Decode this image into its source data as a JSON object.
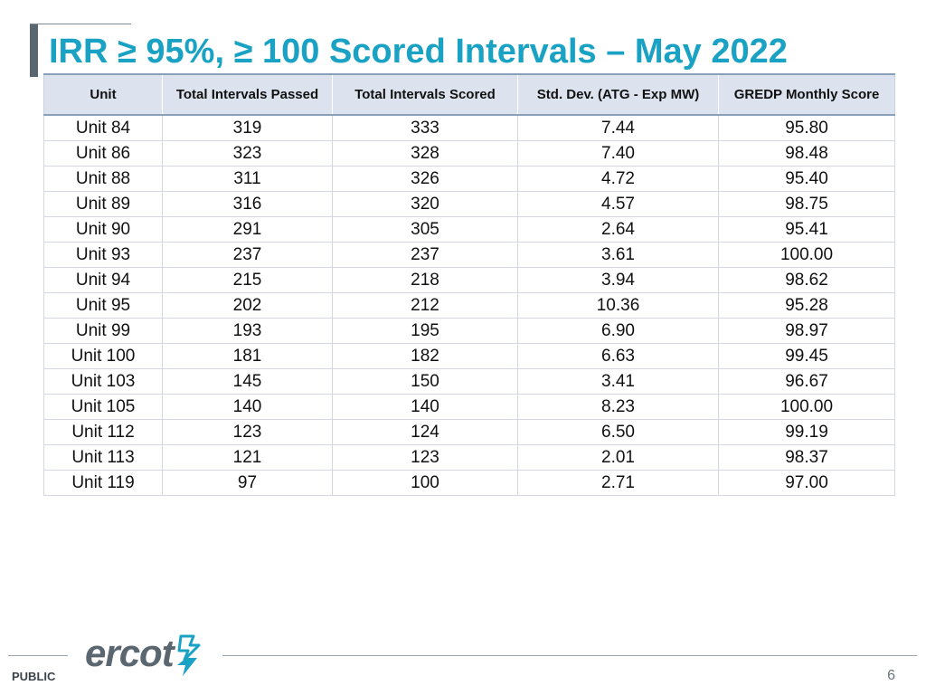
{
  "slide": {
    "title": "IRR ≥ 95%, ≥ 100 Scored Intervals – May 2022",
    "footer_label": "PUBLIC",
    "page_number": "6",
    "logo_text": "ercot",
    "logo_icon": "ercot-star-bolt-icon",
    "accent_color": "#1aa2c4",
    "header_fill_color": "#dce3ee",
    "logo_color": "#5b6770"
  },
  "table": {
    "headers": [
      "Unit",
      "Total Intervals Passed",
      "Total Intervals Scored",
      "Std. Dev. (ATG - Exp MW)",
      "GREDP Monthly Score"
    ],
    "rows": [
      [
        "Unit 84",
        "319",
        "333",
        "7.44",
        "95.80"
      ],
      [
        "Unit 86",
        "323",
        "328",
        "7.40",
        "98.48"
      ],
      [
        "Unit 88",
        "311",
        "326",
        "4.72",
        "95.40"
      ],
      [
        "Unit 89",
        "316",
        "320",
        "4.57",
        "98.75"
      ],
      [
        "Unit 90",
        "291",
        "305",
        "2.64",
        "95.41"
      ],
      [
        "Unit 93",
        "237",
        "237",
        "3.61",
        "100.00"
      ],
      [
        "Unit 94",
        "215",
        "218",
        "3.94",
        "98.62"
      ],
      [
        "Unit 95",
        "202",
        "212",
        "10.36",
        "95.28"
      ],
      [
        "Unit 99",
        "193",
        "195",
        "6.90",
        "98.97"
      ],
      [
        "Unit 100",
        "181",
        "182",
        "6.63",
        "99.45"
      ],
      [
        "Unit 103",
        "145",
        "150",
        "3.41",
        "96.67"
      ],
      [
        "Unit 105",
        "140",
        "140",
        "8.23",
        "100.00"
      ],
      [
        "Unit 112",
        "123",
        "124",
        "6.50",
        "99.19"
      ],
      [
        "Unit 113",
        "121",
        "123",
        "2.01",
        "98.37"
      ],
      [
        "Unit 119",
        "97",
        "100",
        "2.71",
        "97.00"
      ]
    ]
  }
}
